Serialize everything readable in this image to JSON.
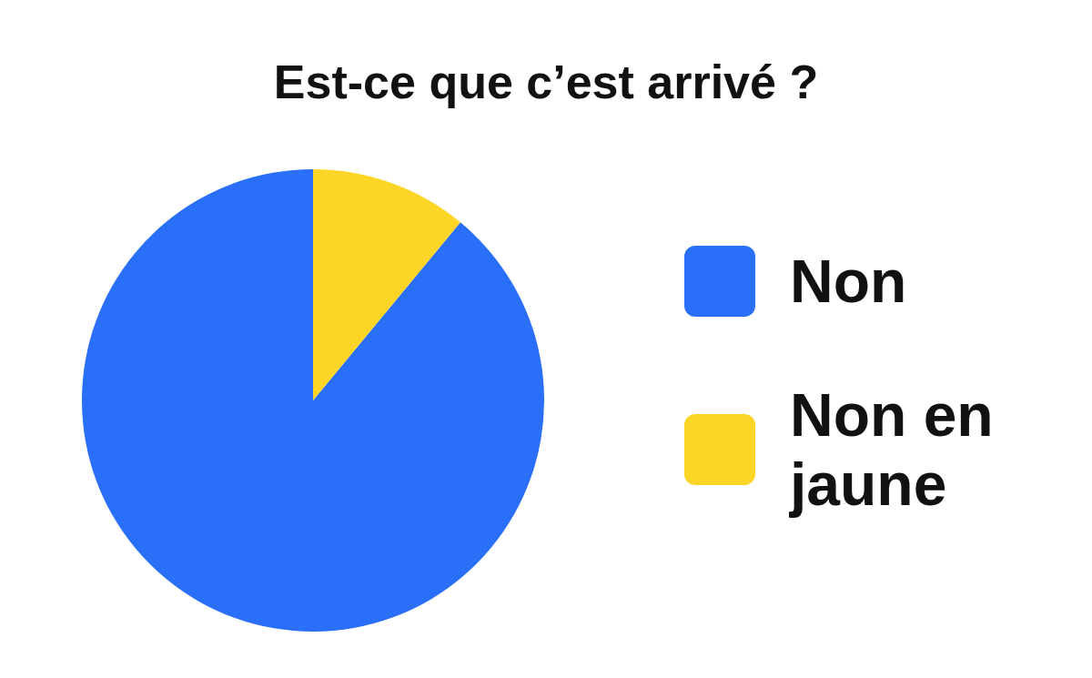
{
  "chart_data": {
    "type": "pie",
    "title": "Est-ce que c’est arrivé ?",
    "categories": [
      "Non",
      "Non en jaune"
    ],
    "values": [
      89,
      11
    ],
    "colors": [
      "#2a6ff7",
      "#fdd526"
    ],
    "legend": "right"
  }
}
